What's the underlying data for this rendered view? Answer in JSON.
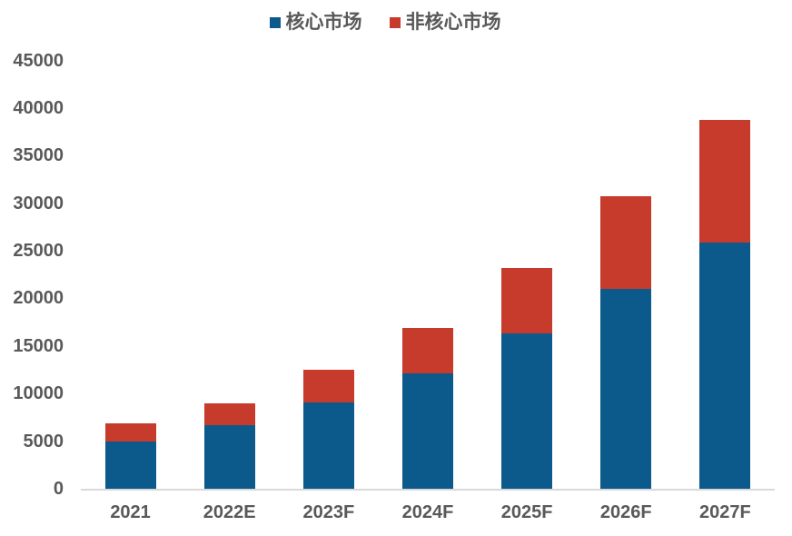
{
  "legend": {
    "items": [
      {
        "label": "核心市场",
        "color": "#0C5A8C"
      },
      {
        "label": "非核心市场",
        "color": "#C73B2C"
      }
    ]
  },
  "chart_data": {
    "type": "bar",
    "stacked": true,
    "title": "",
    "xlabel": "",
    "ylabel": "",
    "categories": [
      "2021",
      "2022E",
      "2023F",
      "2024F",
      "2025F",
      "2026F",
      "2027F"
    ],
    "series": [
      {
        "name": "核心市场",
        "color": "#0C5A8C",
        "values": [
          5000,
          6700,
          9100,
          12100,
          16300,
          21000,
          25900
        ]
      },
      {
        "name": "非核心市场",
        "color": "#C73B2C",
        "values": [
          1900,
          2300,
          3400,
          4800,
          6900,
          9700,
          12900
        ]
      }
    ],
    "totals": [
      6900,
      9000,
      12500,
      16900,
      23200,
      30700,
      38800
    ],
    "ylim": [
      0,
      45000
    ],
    "ytick_step": 5000,
    "yticks": [
      0,
      5000,
      10000,
      15000,
      20000,
      25000,
      30000,
      35000,
      40000,
      45000
    ],
    "grid": false,
    "legend_position": "top-center"
  },
  "colors": {
    "background": "#FFFFFF",
    "axis_line": "#D9D9D9",
    "tick_text": "#595959"
  }
}
